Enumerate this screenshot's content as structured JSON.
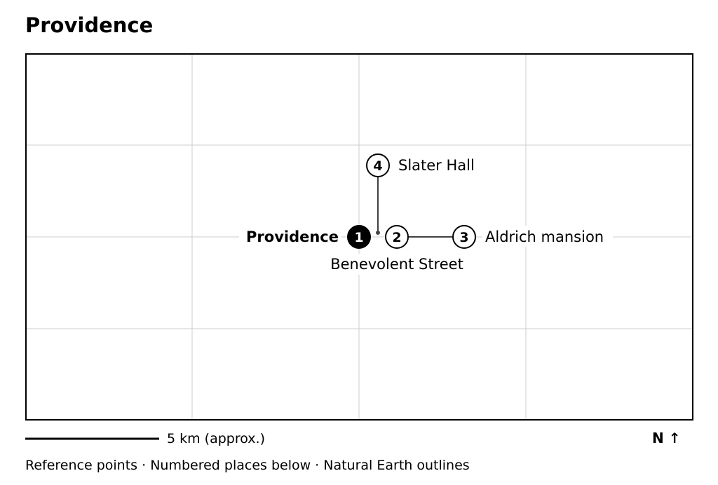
{
  "title": "Providence",
  "places": [
    {
      "id": "1",
      "name": "Providence",
      "primary": true
    },
    {
      "id": "2",
      "name": "Benevolent Street",
      "primary": false
    },
    {
      "id": "3",
      "name": "Aldrich mansion",
      "primary": false
    },
    {
      "id": "4",
      "name": "Slater Hall",
      "primary": false
    }
  ],
  "scale_bar": {
    "label": "5 km (approx.)"
  },
  "north_arrow": {
    "label": "N ↑"
  },
  "footer": "Reference points · Numbered places below · Natural Earth outlines",
  "colors": {
    "frame": "#000000",
    "grid": "#cccccc",
    "marker_primary_fill": "#000000",
    "marker_fill": "#ffffff",
    "text": "#000000"
  }
}
